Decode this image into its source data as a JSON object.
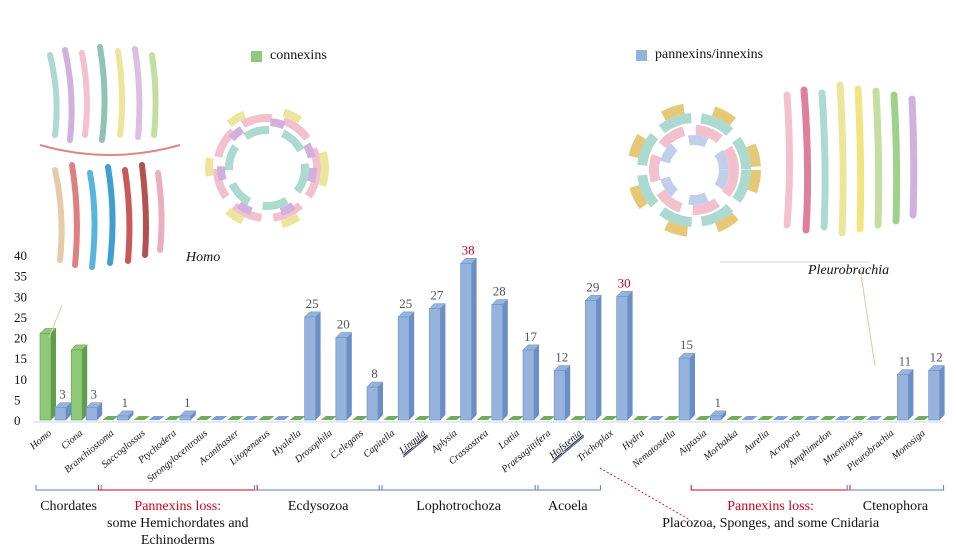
{
  "legend": {
    "connexins": {
      "label": "connexins",
      "color": "#8fc97a"
    },
    "pannexins": {
      "label": "pannexins/innexins",
      "color": "#95b3dc"
    }
  },
  "structures": {
    "left_species": "Homo",
    "right_species": "Pleurobrachia"
  },
  "chart_data": {
    "type": "bar",
    "ylim": [
      0,
      40
    ],
    "yticks": [
      0,
      5,
      10,
      15,
      20,
      25,
      30,
      35,
      40
    ],
    "categories": [
      "Homo",
      "Ciona",
      "Branchiostoma",
      "Saccoglossus",
      "Ptychodera",
      "Strongylocentrotus",
      "Acanthaster",
      "Litopenaeus",
      "Hyalella",
      "Drosophila",
      "C.elegans",
      "Capitella",
      "Lingula",
      "Aplysia",
      "Crassostrea",
      "Lottia",
      "Praesagittifera",
      "Hofstenia",
      "Trichoplax",
      "Hydra",
      "Nematostella",
      "Aiptasia",
      "Morbakka",
      "Aurelia",
      "Acropora",
      "Amphimedon",
      "Mnemiopsis",
      "Pleurobrachia",
      "Monosiga"
    ],
    "underlined": [
      "Lingula",
      "Hofstenia"
    ],
    "series": [
      {
        "name": "connexins",
        "color": "#8fc97a",
        "values": [
          21,
          17,
          0,
          0,
          0,
          0,
          0,
          0,
          0,
          0,
          0,
          0,
          0,
          0,
          0,
          0,
          0,
          0,
          0,
          0,
          0,
          0,
          0,
          0,
          0,
          0,
          0,
          0,
          0
        ]
      },
      {
        "name": "pannexins/innexins",
        "color": "#95b3dc",
        "values": [
          3,
          3,
          1,
          0,
          1,
          0,
          0,
          0,
          25,
          20,
          8,
          25,
          27,
          38,
          28,
          17,
          12,
          29,
          30,
          0,
          15,
          1,
          0,
          0,
          0,
          0,
          0,
          11,
          12
        ]
      }
    ],
    "value_labels": [
      {
        "index": 0,
        "series": 1,
        "text": "3",
        "color": "#555555"
      },
      {
        "index": 1,
        "series": 1,
        "text": "3",
        "color": "#555555"
      },
      {
        "index": 2,
        "series": 1,
        "text": "1",
        "color": "#555555"
      },
      {
        "index": 4,
        "series": 1,
        "text": "1",
        "color": "#555555"
      },
      {
        "index": 8,
        "series": 1,
        "text": "25",
        "color": "#555555"
      },
      {
        "index": 9,
        "series": 1,
        "text": "20",
        "color": "#555555"
      },
      {
        "index": 10,
        "series": 1,
        "text": "8",
        "color": "#555555"
      },
      {
        "index": 11,
        "series": 1,
        "text": "25",
        "color": "#555555"
      },
      {
        "index": 12,
        "series": 1,
        "text": "27",
        "color": "#555555"
      },
      {
        "index": 13,
        "series": 1,
        "text": "38",
        "color": "#d0021b"
      },
      {
        "index": 14,
        "series": 1,
        "text": "28",
        "color": "#555555"
      },
      {
        "index": 15,
        "series": 1,
        "text": "17",
        "color": "#555555"
      },
      {
        "index": 16,
        "series": 1,
        "text": "12",
        "color": "#555555"
      },
      {
        "index": 17,
        "series": 1,
        "text": "29",
        "color": "#555555"
      },
      {
        "index": 18,
        "series": 1,
        "text": "30",
        "color": "#d0021b"
      },
      {
        "index": 20,
        "series": 1,
        "text": "15",
        "color": "#555555"
      },
      {
        "index": 21,
        "series": 1,
        "text": "1",
        "color": "#555555"
      },
      {
        "index": 27,
        "series": 1,
        "text": "11",
        "color": "#555555"
      },
      {
        "index": 28,
        "series": 1,
        "text": "12",
        "color": "#555555"
      }
    ],
    "groups": [
      {
        "lines": [
          "Chordates"
        ],
        "from": 0,
        "to": 1,
        "color": "#5b7fc0",
        "text_color": "#111111"
      },
      {
        "lines": [
          "Pannexins loss:",
          "some Hemichordates and",
          "Echinoderms"
        ],
        "from": 2,
        "to": 6,
        "color": "#d0021b",
        "text_color": "#d0021b",
        "colored_lines": 1
      },
      {
        "lines": [
          "Ecdysozoa"
        ],
        "from": 7,
        "to": 10,
        "color": "#5b7fc0",
        "text_color": "#111111"
      },
      {
        "lines": [
          "Lophotrochoza"
        ],
        "from": 11,
        "to": 15,
        "color": "#5b7fc0",
        "text_color": "#111111"
      },
      {
        "lines": [
          "Acoela"
        ],
        "from": 16,
        "to": 17,
        "color": "#5b7fc0",
        "text_color": "#111111"
      },
      {
        "lines": [
          "Pannexins loss:",
          "Placozoa, Sponges, and some Cnidaria"
        ],
        "from": 21,
        "to": 25,
        "color": "#d0021b",
        "text_color": "#d0021b",
        "colored_lines": 1
      },
      {
        "lines": [
          "Ctenophora"
        ],
        "from": 26,
        "to": 28,
        "color": "#5b7fc0",
        "text_color": "#111111"
      }
    ]
  }
}
